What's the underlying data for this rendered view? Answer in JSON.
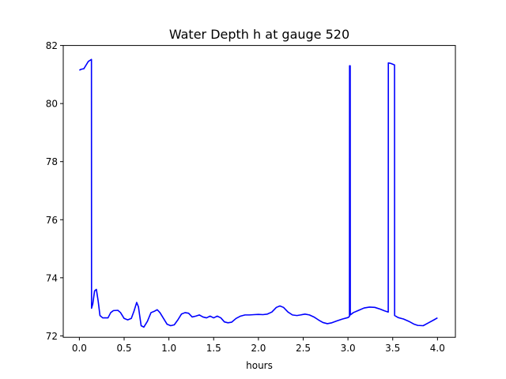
{
  "chart_data": {
    "type": "line",
    "title": "Water Depth h at gauge 520",
    "xlabel": "hours",
    "ylabel": "",
    "xlim": [
      -0.18,
      4.2
    ],
    "ylim": [
      71.95,
      82.0
    ],
    "xticks": [
      0.0,
      0.5,
      1.0,
      1.5,
      2.0,
      2.5,
      3.0,
      3.5,
      4.0
    ],
    "xtick_labels": [
      "0.0",
      "0.5",
      "1.0",
      "1.5",
      "2.0",
      "2.5",
      "3.0",
      "3.5",
      "4.0"
    ],
    "yticks": [
      72,
      74,
      76,
      78,
      80,
      82
    ],
    "ytick_labels": [
      "72",
      "74",
      "76",
      "78",
      "80",
      "82"
    ],
    "grid": false,
    "series": [
      {
        "color": "#0000ff",
        "points": [
          [
            0.0,
            81.15
          ],
          [
            0.02,
            81.18
          ],
          [
            0.05,
            81.2
          ],
          [
            0.08,
            81.35
          ],
          [
            0.1,
            81.45
          ],
          [
            0.135,
            81.52
          ],
          [
            0.136,
            72.95
          ],
          [
            0.15,
            73.1
          ],
          [
            0.17,
            73.55
          ],
          [
            0.19,
            73.6
          ],
          [
            0.21,
            73.2
          ],
          [
            0.23,
            72.7
          ],
          [
            0.26,
            72.62
          ],
          [
            0.32,
            72.62
          ],
          [
            0.35,
            72.8
          ],
          [
            0.38,
            72.87
          ],
          [
            0.43,
            72.88
          ],
          [
            0.46,
            72.8
          ],
          [
            0.5,
            72.6
          ],
          [
            0.54,
            72.55
          ],
          [
            0.58,
            72.6
          ],
          [
            0.61,
            72.85
          ],
          [
            0.64,
            73.15
          ],
          [
            0.66,
            73.0
          ],
          [
            0.69,
            72.35
          ],
          [
            0.72,
            72.3
          ],
          [
            0.76,
            72.5
          ],
          [
            0.8,
            72.8
          ],
          [
            0.84,
            72.85
          ],
          [
            0.87,
            72.9
          ],
          [
            0.9,
            72.8
          ],
          [
            0.94,
            72.6
          ],
          [
            0.98,
            72.4
          ],
          [
            1.02,
            72.35
          ],
          [
            1.06,
            72.38
          ],
          [
            1.1,
            72.55
          ],
          [
            1.14,
            72.75
          ],
          [
            1.18,
            72.8
          ],
          [
            1.22,
            72.78
          ],
          [
            1.26,
            72.65
          ],
          [
            1.3,
            72.68
          ],
          [
            1.34,
            72.72
          ],
          [
            1.38,
            72.65
          ],
          [
            1.42,
            72.62
          ],
          [
            1.46,
            72.68
          ],
          [
            1.5,
            72.62
          ],
          [
            1.54,
            72.68
          ],
          [
            1.58,
            72.62
          ],
          [
            1.62,
            72.48
          ],
          [
            1.66,
            72.45
          ],
          [
            1.7,
            72.47
          ],
          [
            1.75,
            72.6
          ],
          [
            1.8,
            72.68
          ],
          [
            1.85,
            72.72
          ],
          [
            1.9,
            72.72
          ],
          [
            1.95,
            72.73
          ],
          [
            2.0,
            72.74
          ],
          [
            2.05,
            72.73
          ],
          [
            2.1,
            72.75
          ],
          [
            2.15,
            72.82
          ],
          [
            2.2,
            72.98
          ],
          [
            2.24,
            73.03
          ],
          [
            2.28,
            72.98
          ],
          [
            2.33,
            72.82
          ],
          [
            2.38,
            72.72
          ],
          [
            2.43,
            72.7
          ],
          [
            2.47,
            72.72
          ],
          [
            2.52,
            72.75
          ],
          [
            2.57,
            72.72
          ],
          [
            2.62,
            72.65
          ],
          [
            2.67,
            72.55
          ],
          [
            2.72,
            72.46
          ],
          [
            2.77,
            72.42
          ],
          [
            2.82,
            72.45
          ],
          [
            2.88,
            72.52
          ],
          [
            2.94,
            72.58
          ],
          [
            3.0,
            72.63
          ],
          [
            3.017,
            72.67
          ],
          [
            3.018,
            81.3
          ],
          [
            3.025,
            81.3
          ],
          [
            3.026,
            72.72
          ],
          [
            3.06,
            72.8
          ],
          [
            3.12,
            72.88
          ],
          [
            3.18,
            72.96
          ],
          [
            3.24,
            72.99
          ],
          [
            3.3,
            72.98
          ],
          [
            3.36,
            72.92
          ],
          [
            3.41,
            72.86
          ],
          [
            3.45,
            72.82
          ],
          [
            3.451,
            81.4
          ],
          [
            3.48,
            81.38
          ],
          [
            3.52,
            81.33
          ],
          [
            3.521,
            72.7
          ],
          [
            3.56,
            72.63
          ],
          [
            3.62,
            72.58
          ],
          [
            3.68,
            72.5
          ],
          [
            3.74,
            72.4
          ],
          [
            3.78,
            72.36
          ],
          [
            3.84,
            72.35
          ],
          [
            3.9,
            72.45
          ],
          [
            3.96,
            72.55
          ],
          [
            4.0,
            72.62
          ]
        ]
      }
    ]
  }
}
